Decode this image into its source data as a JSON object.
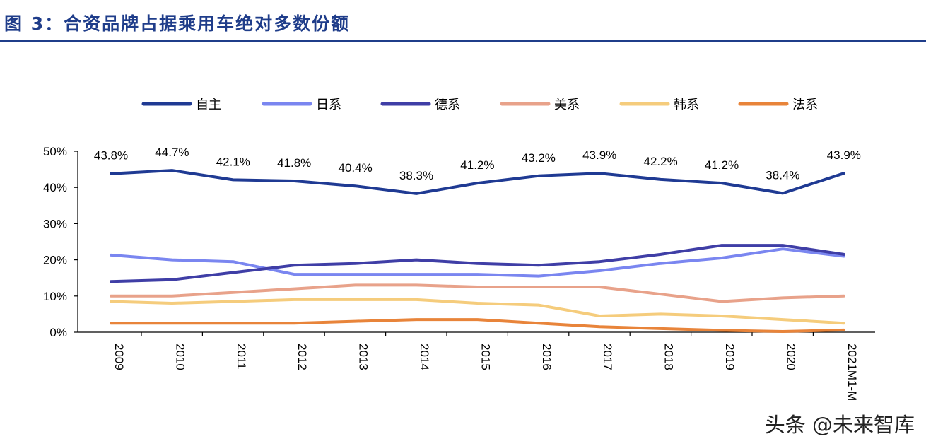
{
  "header": {
    "title": "图 3：合资品牌占据乘用车绝对多数份额"
  },
  "watermark": "头条 @未来智库",
  "chart_data": {
    "type": "line",
    "title": "合资品牌占据乘用车绝对多数份额",
    "xlabel": "",
    "ylabel": "",
    "categories": [
      "2009",
      "2010",
      "2011",
      "2012",
      "2013",
      "2014",
      "2015",
      "2016",
      "2017",
      "2018",
      "2019",
      "2020",
      "2021M1-M"
    ],
    "ylim": [
      0,
      50
    ],
    "yticks": [
      "0%",
      "10%",
      "20%",
      "30%",
      "40%",
      "50%"
    ],
    "grid": false,
    "legend_position": "top",
    "series": [
      {
        "name": "自主",
        "color": "#1f3a93",
        "values": [
          43.8,
          44.7,
          42.1,
          41.8,
          40.4,
          38.3,
          41.2,
          43.2,
          43.9,
          42.2,
          41.2,
          38.4,
          43.9
        ],
        "labels": [
          "43.8%",
          "44.7%",
          "42.1%",
          "41.8%",
          "40.4%",
          "38.3%",
          "41.2%",
          "43.2%",
          "43.9%",
          "42.2%",
          "41.2%",
          "38.4%",
          "43.9%"
        ]
      },
      {
        "name": "日系",
        "color": "#7a86f0",
        "values": [
          21.3,
          20.0,
          19.5,
          16.0,
          16.0,
          16.0,
          16.0,
          15.5,
          17.0,
          19.0,
          20.5,
          23.0,
          21.0
        ]
      },
      {
        "name": "德系",
        "color": "#3f3ea6",
        "values": [
          14.0,
          14.5,
          16.5,
          18.5,
          19.0,
          20.0,
          19.0,
          18.5,
          19.5,
          21.5,
          24.0,
          24.0,
          21.5
        ]
      },
      {
        "name": "美系",
        "color": "#e8a28a",
        "values": [
          10.0,
          10.0,
          11.0,
          12.0,
          13.0,
          13.0,
          12.5,
          12.5,
          12.5,
          10.5,
          8.5,
          9.5,
          10.0
        ]
      },
      {
        "name": "韩系",
        "color": "#f5cc7c",
        "values": [
          8.5,
          8.0,
          8.5,
          9.0,
          9.0,
          9.0,
          8.0,
          7.5,
          4.5,
          5.0,
          4.5,
          3.5,
          2.5
        ]
      },
      {
        "name": "法系",
        "color": "#e8843a",
        "values": [
          2.5,
          2.5,
          2.5,
          2.5,
          3.0,
          3.5,
          3.5,
          2.5,
          1.5,
          1.0,
          0.5,
          0.2,
          0.6
        ]
      }
    ]
  }
}
